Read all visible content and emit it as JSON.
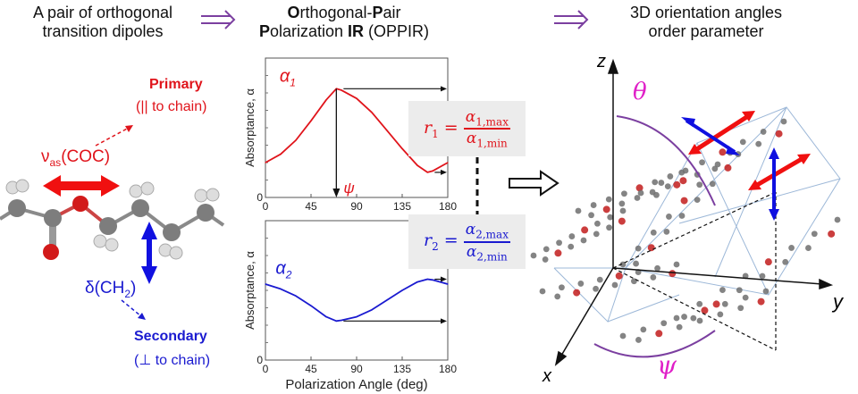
{
  "headers": {
    "left": [
      "A pair of orthogonal",
      "transition dipoles"
    ],
    "middle_line1": [
      {
        "bold": "O",
        "rest": "rthogonal-"
      },
      {
        "bold": "P",
        "rest": "air"
      }
    ],
    "middle_line2": [
      {
        "bold": "P",
        "rest": "olarization "
      },
      {
        "bold": "IR",
        "rest": " (OPPIR)"
      }
    ],
    "right": [
      "3D orientation angles",
      "order parameter"
    ]
  },
  "colors": {
    "primary": "#e0141b",
    "secondary": "#1a1ad0",
    "arrow": "#7b3fa0",
    "angle_label": "#e020c8"
  },
  "molecule": {
    "primary_title": "Primary",
    "primary_sub": "(|| to chain)",
    "primary_mode": "ν",
    "primary_mode_sub": "as",
    "primary_mode_rest": "(COC)",
    "secondary_title": "Secondary",
    "secondary_sub": "(⊥ to chain)",
    "secondary_mode": "δ(CH",
    "secondary_mode_sub": "2",
    "secondary_mode_rest": ")"
  },
  "formulas": {
    "r1": {
      "lhs": "r",
      "lhs_sub": "1",
      "num": "α",
      "num_sub": "1,max",
      "den": "α",
      "den_sub": "1,min"
    },
    "r2": {
      "lhs": "r",
      "lhs_sub": "2",
      "num": "α",
      "num_sub": "2,max",
      "den": "α",
      "den_sub": "2,min"
    }
  },
  "chart_data": [
    {
      "type": "line",
      "ylabel": "Absorptance, α",
      "xlabel": "",
      "xlim": [
        0,
        180
      ],
      "ylim": [
        0,
        1
      ],
      "xticks": [
        "0",
        "45",
        "90",
        "135",
        "180"
      ],
      "yticks": [
        "0"
      ],
      "series": [
        {
          "name": "α1",
          "color": "#e0141b",
          "x": [
            0,
            15,
            30,
            45,
            60,
            70,
            75,
            90,
            105,
            120,
            135,
            150,
            160,
            165,
            180
          ],
          "y": [
            0.25,
            0.31,
            0.41,
            0.55,
            0.7,
            0.78,
            0.77,
            0.71,
            0.61,
            0.48,
            0.35,
            0.23,
            0.18,
            0.19,
            0.25
          ]
        }
      ],
      "annotations": {
        "psi_label": "ψ",
        "psi_x": 70
      }
    },
    {
      "type": "line",
      "ylabel": "Absorptance, α",
      "xlabel": "Polarization Angle (deg)",
      "xlim": [
        0,
        180
      ],
      "ylim": [
        0,
        1
      ],
      "xticks": [
        "0",
        "45",
        "90",
        "135",
        "180"
      ],
      "yticks": [
        "0"
      ],
      "series": [
        {
          "name": "α2",
          "color": "#1a1ad0",
          "x": [
            0,
            15,
            30,
            45,
            60,
            70,
            75,
            90,
            105,
            120,
            135,
            150,
            160,
            165,
            180
          ],
          "y": [
            0.545,
            0.51,
            0.46,
            0.39,
            0.31,
            0.28,
            0.285,
            0.31,
            0.36,
            0.43,
            0.5,
            0.56,
            0.58,
            0.575,
            0.545
          ]
        }
      ]
    }
  ],
  "orientation": {
    "z": "z",
    "y": "y",
    "x": "x",
    "theta": "θ",
    "psi": "ψ"
  }
}
